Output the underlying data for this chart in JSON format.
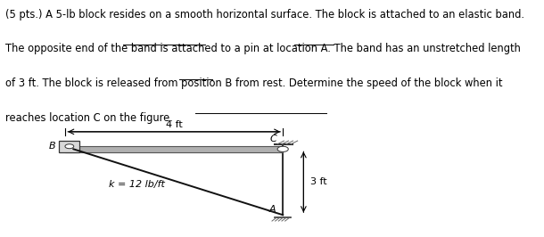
{
  "fig_width": 6.1,
  "fig_height": 2.66,
  "dpi": 100,
  "bg_color": "#ffffff",
  "text_color": "#000000",
  "fontsize_text": 8.3,
  "fontsize_diagram": 8.0,
  "lines": [
    "(5 pts.) A 5-lb block resides on a smooth horizontal surface. The block is attached to an elastic band.",
    "The opposite end of the band is attached to a pin at location A. The band has an unstretched length",
    "of 3 ft. The block is released from position B from rest. Determine the speed of the block when it",
    "reaches location C on the figure."
  ],
  "label_4ft": "4 ft",
  "label_3ft": "3 ft",
  "label_k": "k = 12 lb/ft",
  "label_A": "A",
  "label_B": "B",
  "label_C": "C",
  "bar_color": "#b0b0b0",
  "bar_edge_color": "#555555",
  "block_color": "#d8d8d8",
  "block_edge_color": "#333333",
  "band_color": "#111111",
  "wall_color": "#333333",
  "dim_color": "#000000"
}
